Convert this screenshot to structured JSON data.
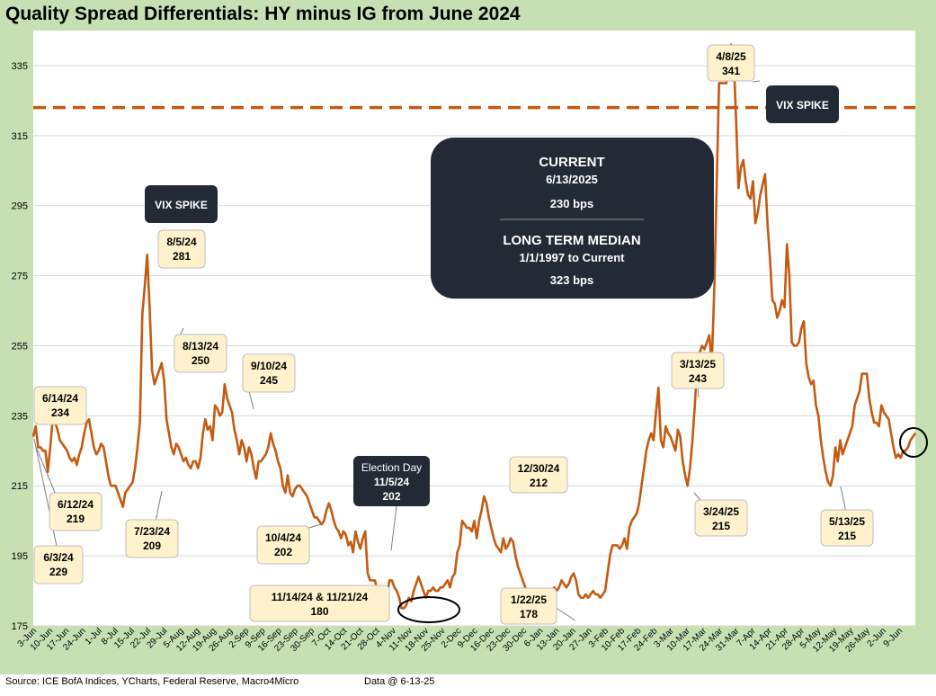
{
  "title": "Quality Spread Differentials: HY minus IG from June 2024",
  "footer": {
    "source": "Source: ICE BofA Indices, YCharts, Federal Reserve, Macro4Micro",
    "data_date": "Data @ 6-13-25"
  },
  "colors": {
    "line": "#c55a11",
    "median": "#c55a11",
    "box_fill": "#222a35",
    "label_fill": "#fff2cc",
    "panel": "#c6e0b4"
  },
  "info_box": {
    "current_title": "CURRENT",
    "current_date": "6/13/2025",
    "current_value": "230 bps",
    "median_title": "LONG TERM MEDIAN",
    "median_range": "1/1/1997 to Current",
    "median_value": "323 bps"
  },
  "chart_data": {
    "type": "line",
    "title": "Quality Spread Differentials: HY minus IG from June 2024",
    "xlabel": "",
    "ylabel": "",
    "ylim": [
      175,
      345
    ],
    "yticks": [
      175,
      195,
      215,
      235,
      255,
      275,
      295,
      315,
      335
    ],
    "x_tick_labels": [
      "3-Jun",
      "10-Jun",
      "17-Jun",
      "24-Jun",
      "1-Jul",
      "8-Jul",
      "15-Jul",
      "22-Jul",
      "29-Jul",
      "5-Aug",
      "12-Aug",
      "19-Aug",
      "26-Aug",
      "2-Sep",
      "9-Sep",
      "16-Sep",
      "23-Sep",
      "30-Sep",
      "7-Oct",
      "14-Oct",
      "21-Oct",
      "28-Oct",
      "4-Nov",
      "11-Nov",
      "18-Nov",
      "25-Nov",
      "2-Dec",
      "9-Dec",
      "16-Dec",
      "23-Dec",
      "30-Dec",
      "6-Jan",
      "13-Jan",
      "20-Jan",
      "27-Jan",
      "3-Feb",
      "10-Feb",
      "17-Feb",
      "24-Feb",
      "3-Mar",
      "10-Mar",
      "17-Mar",
      "24-Mar",
      "31-Mar",
      "7-Apr",
      "14-Apr",
      "21-Apr",
      "28-Apr",
      "5-May",
      "12-May",
      "19-May",
      "26-May",
      "2-Jun",
      "9-Jun"
    ],
    "median_line": 323,
    "series": [
      {
        "name": "HY minus IG (bps)",
        "values": [
          229,
          232,
          226,
          226,
          225,
          225,
          219,
          226,
          234,
          233,
          231,
          228,
          227,
          226,
          225,
          223,
          222,
          223,
          221,
          224,
          226,
          230,
          233,
          234,
          230,
          226,
          224,
          225,
          227,
          226,
          222,
          218,
          215,
          215,
          215,
          213,
          211,
          209,
          213,
          214,
          215,
          216,
          220,
          226,
          233,
          264,
          272,
          281,
          266,
          248,
          244,
          246,
          248,
          250,
          245,
          234,
          230,
          226,
          224,
          227,
          226,
          224,
          222,
          223,
          221,
          220,
          222,
          222,
          220,
          223,
          230,
          234,
          231,
          232,
          228,
          238,
          237,
          235,
          236,
          244,
          240,
          238,
          236,
          231,
          228,
          224,
          228,
          226,
          222,
          226,
          224,
          220,
          217,
          222,
          222,
          223,
          224,
          226,
          230,
          227,
          225,
          222,
          220,
          215,
          213,
          218,
          213,
          212,
          214,
          215,
          215,
          214,
          213,
          212,
          210,
          208,
          206,
          206,
          205,
          204,
          205,
          208,
          210,
          208,
          205,
          203,
          202,
          200,
          202,
          201,
          198,
          199,
          196,
          202,
          199,
          197,
          200,
          202,
          190,
          188,
          188,
          188,
          185,
          184,
          185,
          180,
          184,
          188,
          188,
          186,
          185,
          183,
          180,
          180,
          181,
          183,
          182,
          185,
          187,
          189,
          187,
          185,
          183,
          185,
          185,
          186,
          185,
          185,
          186,
          186,
          187,
          188,
          186,
          189,
          190,
          196,
          198,
          205,
          204,
          203,
          203,
          202,
          205,
          200,
          205,
          208,
          212,
          210,
          206,
          203,
          200,
          198,
          197,
          196,
          200,
          197,
          198,
          200,
          199,
          195,
          192,
          190,
          188,
          186,
          185,
          183,
          181,
          182,
          180,
          178,
          180,
          183,
          182,
          184,
          185,
          186,
          185,
          186,
          188,
          187,
          186,
          187,
          189,
          190,
          188,
          184,
          183,
          183,
          184,
          183,
          184,
          185,
          184,
          184,
          183,
          184,
          185,
          190,
          195,
          198,
          198,
          198,
          197,
          198,
          200,
          197,
          203,
          205,
          206,
          207,
          210,
          215,
          220,
          225,
          228,
          230,
          228,
          236,
          243,
          228,
          226,
          232,
          230,
          229,
          227,
          225,
          231,
          229,
          222,
          218,
          215,
          220,
          228,
          238,
          250,
          253,
          255,
          254,
          256,
          258,
          250,
          270,
          300,
          330,
          330,
          330,
          330,
          335,
          341,
          338,
          320,
          300,
          306,
          308,
          302,
          298,
          297,
          302,
          290,
          293,
          298,
          301,
          304,
          290,
          280,
          268,
          267,
          263,
          265,
          268,
          266,
          284,
          275,
          256,
          255,
          255,
          256,
          260,
          262,
          250,
          246,
          244,
          245,
          238,
          235,
          228,
          223,
          219,
          216,
          215,
          218,
          226,
          222,
          228,
          224,
          226,
          228,
          230,
          232,
          238,
          240,
          242,
          247,
          247,
          247,
          240,
          236,
          233,
          233,
          232,
          238,
          236,
          235,
          234,
          230,
          226,
          223,
          224,
          223,
          225,
          225,
          226,
          228,
          229,
          230
        ]
      }
    ],
    "annotations": [
      {
        "label": "6/3/24",
        "value": "229"
      },
      {
        "label": "6/14/24",
        "value": "234"
      },
      {
        "label": "6/12/24",
        "value": "219"
      },
      {
        "label": "7/23/24",
        "value": "209"
      },
      {
        "label": "8/5/24",
        "value": "281"
      },
      {
        "label": "8/13/24",
        "value": "250"
      },
      {
        "label": "9/10/24",
        "value": "245"
      },
      {
        "label": "10/4/24",
        "value": "202"
      },
      {
        "label": "Election Day",
        "value": "11/5/24",
        "extra": "202"
      },
      {
        "label": "11/14/24 & 11/21/24",
        "value": "180"
      },
      {
        "label": "12/30/24",
        "value": "212"
      },
      {
        "label": "1/22/25",
        "value": "178"
      },
      {
        "label": "3/13/25",
        "value": "243"
      },
      {
        "label": "3/24/25",
        "value": "215"
      },
      {
        "label": "4/8/25",
        "value": "341"
      },
      {
        "label": "5/13/25",
        "value": "215"
      }
    ],
    "vix_spike_labels": [
      "VIX SPIKE",
      "VIX SPIKE"
    ]
  }
}
